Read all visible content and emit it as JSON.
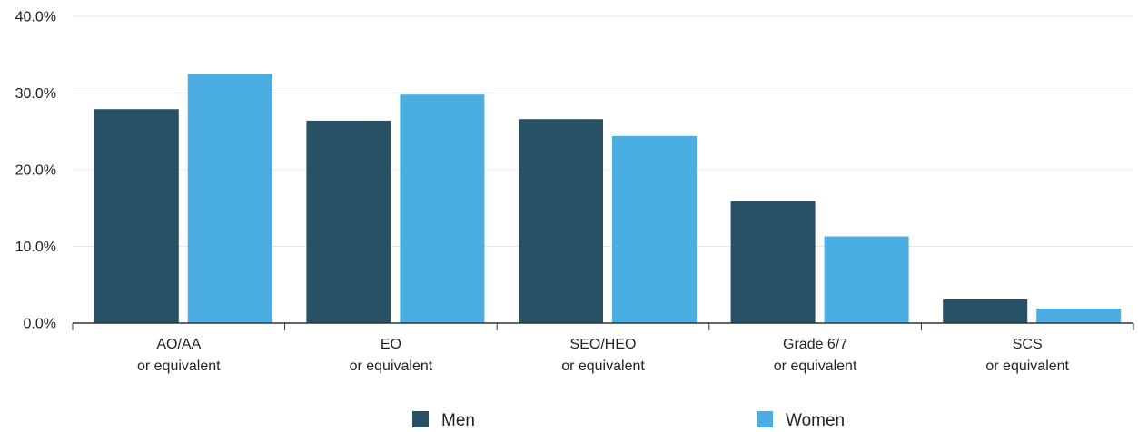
{
  "chart_data": {
    "type": "bar",
    "categories": [
      [
        "AO/AA",
        "or equivalent"
      ],
      [
        "EO",
        "or equivalent"
      ],
      [
        "SEO/HEO",
        "or equivalent"
      ],
      [
        "Grade 6/7",
        "or equivalent"
      ],
      [
        "SCS",
        "or equivalent"
      ]
    ],
    "series": [
      {
        "name": "Men",
        "color": "#285166",
        "values": [
          27.9,
          26.4,
          26.6,
          15.9,
          3.1
        ]
      },
      {
        "name": "Women",
        "color": "#4baee3",
        "values": [
          32.5,
          29.8,
          24.4,
          11.3,
          1.9
        ]
      }
    ],
    "ylim": [
      0,
      40
    ],
    "yticks": [
      0,
      10,
      20,
      30,
      40
    ],
    "ytick_labels": [
      "0.0%",
      "10.0%",
      "20.0%",
      "30.0%",
      "40.0%"
    ],
    "grid": true,
    "legend_position": "bottom"
  }
}
